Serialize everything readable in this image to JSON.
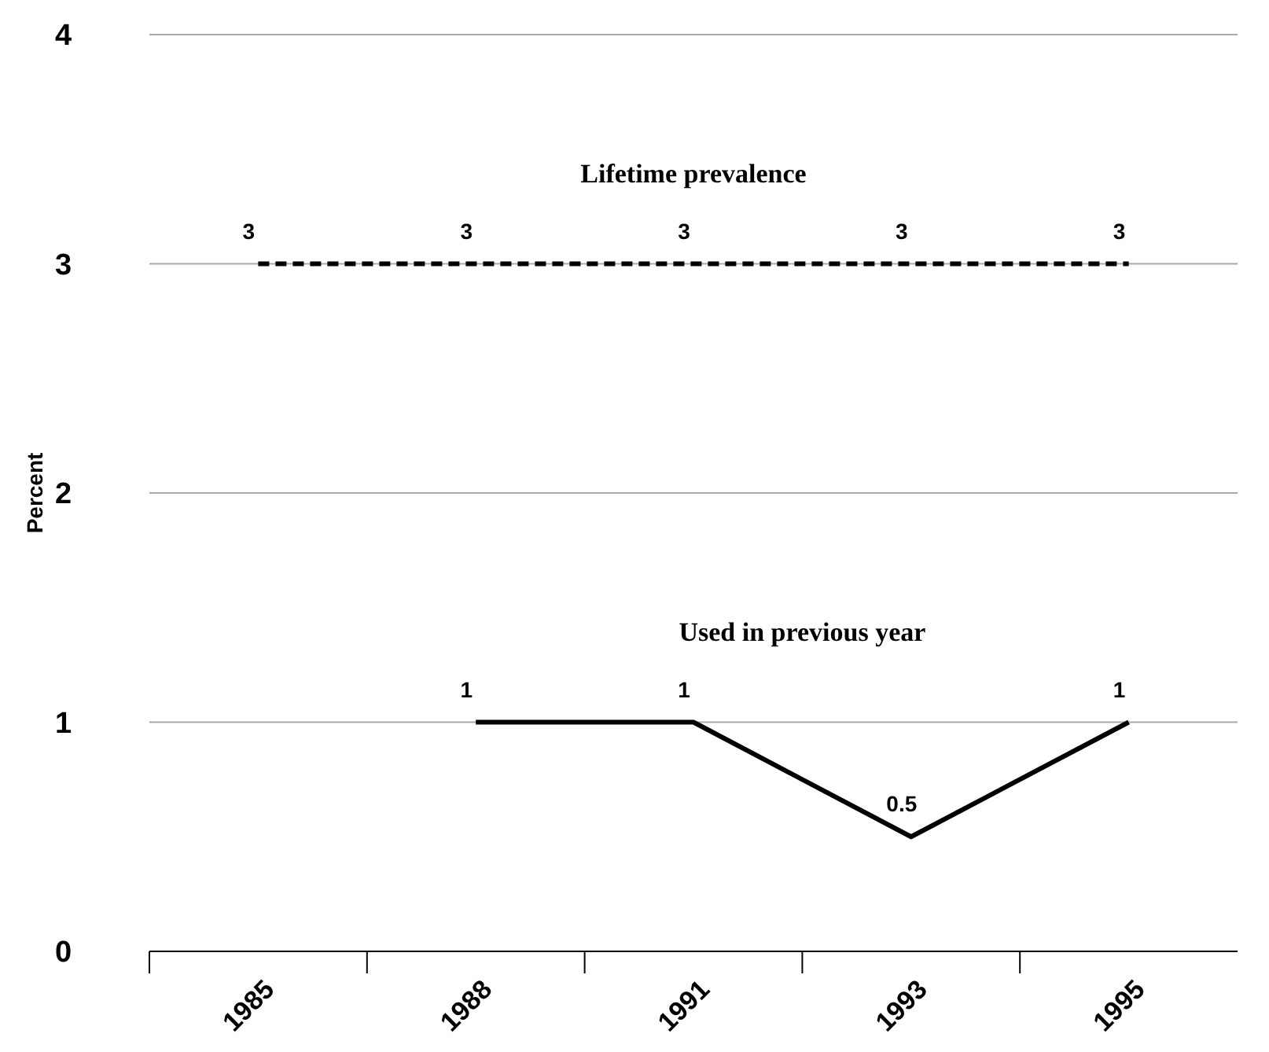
{
  "chart_data": {
    "type": "line",
    "ylabel": "Percent",
    "categories": [
      "1985",
      "1988",
      "1991",
      "1993",
      "1995"
    ],
    "series": [
      {
        "name": "Lifetime prevalence",
        "color": "#000000",
        "line_style": "dashed",
        "values": [
          3,
          3,
          3,
          3,
          3
        ]
      },
      {
        "name": "Used in previous year",
        "color": "#000000",
        "line_style": "solid",
        "values": [
          null,
          1,
          1,
          0.5,
          1
        ]
      }
    ],
    "ylim": [
      0,
      4
    ],
    "yticks": [
      0,
      1,
      2,
      3,
      4
    ],
    "grid": "y",
    "legend": false,
    "marker": "none",
    "data_labels": true
  }
}
